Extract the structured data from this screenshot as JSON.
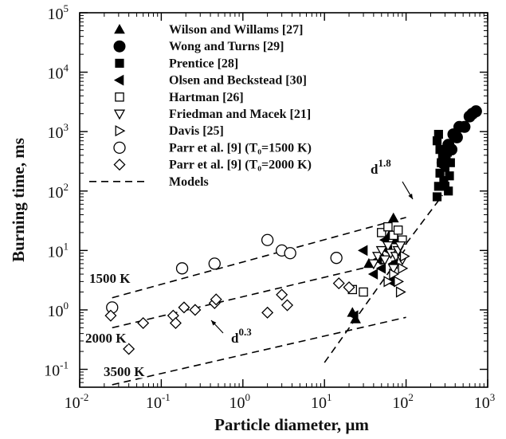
{
  "chart_data": {
    "type": "scatter",
    "title": "",
    "xlabel": "Particle diameter, µm",
    "ylabel": "Burning time, ms",
    "xscale": "log",
    "yscale": "log",
    "xlim": [
      0.01,
      1000
    ],
    "ylim": [
      0.05,
      100000
    ],
    "x_ticks": [
      {
        "value": 0.01,
        "mant": "10",
        "exp": "-2"
      },
      {
        "value": 0.1,
        "mant": "10",
        "exp": "-1"
      },
      {
        "value": 1,
        "mant": "10",
        "exp": "0"
      },
      {
        "value": 10,
        "mant": "10",
        "exp": "1"
      },
      {
        "value": 100,
        "mant": "10",
        "exp": "2"
      },
      {
        "value": 1000,
        "mant": "10",
        "exp": "3"
      }
    ],
    "y_ticks": [
      {
        "value": 0.1,
        "mant": "10",
        "exp": "-1"
      },
      {
        "value": 1,
        "mant": "10",
        "exp": "0"
      },
      {
        "value": 10,
        "mant": "10",
        "exp": "1"
      },
      {
        "value": 100,
        "mant": "10",
        "exp": "2"
      },
      {
        "value": 1000,
        "mant": "10",
        "exp": "3"
      },
      {
        "value": 10000,
        "mant": "10",
        "exp": "4"
      },
      {
        "value": 100000,
        "mant": "10",
        "exp": "5"
      }
    ],
    "grid": false,
    "legend_position": "top-left",
    "series": [
      {
        "name": "Wilson and Willams [27]",
        "marker": "triangle-up",
        "filled": true,
        "points": [
          [
            22,
            0.9
          ],
          [
            24,
            0.7
          ],
          [
            35,
            6
          ],
          [
            50,
            8
          ],
          [
            65,
            20
          ],
          [
            70,
            35
          ],
          [
            75,
            15
          ]
        ]
      },
      {
        "name": "Wong and Turns [29]",
        "marker": "circle",
        "filled": true,
        "points": [
          [
            280,
            300
          ],
          [
            300,
            450
          ],
          [
            330,
            600
          ],
          [
            360,
            500
          ],
          [
            420,
            800
          ],
          [
            450,
            1200
          ],
          [
            520,
            1200
          ],
          [
            600,
            1800
          ],
          [
            650,
            2000
          ],
          [
            720,
            2200
          ],
          [
            380,
            900
          ]
        ]
      },
      {
        "name": "Prentice [28]",
        "marker": "square",
        "filled": true,
        "points": [
          [
            240,
            80
          ],
          [
            250,
            120
          ],
          [
            260,
            200
          ],
          [
            270,
            300
          ],
          [
            280,
            400
          ],
          [
            290,
            150
          ],
          [
            300,
            250
          ],
          [
            310,
            350
          ],
          [
            320,
            450
          ],
          [
            330,
            100
          ],
          [
            340,
            180
          ],
          [
            260,
            500
          ],
          [
            240,
            700
          ],
          [
            250,
            900
          ],
          [
            350,
            300
          ],
          [
            300,
            120
          ]
        ]
      },
      {
        "name": "Olsen and Beckstead [30]",
        "marker": "triangle-left",
        "filled": true,
        "points": [
          [
            23,
            0.8
          ],
          [
            30,
            10
          ],
          [
            40,
            4
          ],
          [
            45,
            7
          ],
          [
            50,
            5
          ],
          [
            55,
            15
          ],
          [
            60,
            10
          ],
          [
            65,
            3
          ],
          [
            70,
            6
          ]
        ]
      },
      {
        "name": "Hartman [26]",
        "marker": "square",
        "filled": false,
        "points": [
          [
            22,
            2.2
          ],
          [
            30,
            2
          ],
          [
            50,
            20
          ],
          [
            60,
            25
          ],
          [
            70,
            18
          ],
          [
            80,
            22
          ],
          [
            90,
            15
          ]
        ]
      },
      {
        "name": "Friedman and Macek [21]",
        "marker": "triangle-down",
        "filled": false,
        "points": [
          [
            40,
            6
          ],
          [
            45,
            8
          ],
          [
            50,
            10
          ],
          [
            55,
            7
          ],
          [
            60,
            12
          ],
          [
            65,
            9
          ],
          [
            70,
            5
          ],
          [
            75,
            8
          ],
          [
            80,
            10
          ],
          [
            85,
            12
          ],
          [
            90,
            7
          ]
        ]
      },
      {
        "name": "Davis [25]",
        "marker": "triangle-right",
        "filled": false,
        "points": [
          [
            60,
            3
          ],
          [
            70,
            4
          ],
          [
            80,
            3
          ],
          [
            85,
            2
          ],
          [
            90,
            5
          ],
          [
            95,
            8
          ]
        ]
      },
      {
        "name": "Parr et al. [9] (T₀=1500 K)",
        "marker": "circle",
        "filled": false,
        "points": [
          [
            0.025,
            1.1
          ],
          [
            0.18,
            5
          ],
          [
            0.45,
            6
          ],
          [
            2,
            15
          ],
          [
            3,
            10
          ],
          [
            3.8,
            9
          ],
          [
            14,
            7.5
          ]
        ]
      },
      {
        "name": "Parr et al. [9] (T₀=2000 K)",
        "marker": "diamond",
        "filled": false,
        "points": [
          [
            0.024,
            0.8
          ],
          [
            0.04,
            0.22
          ],
          [
            0.06,
            0.6
          ],
          [
            0.14,
            0.8
          ],
          [
            0.15,
            0.6
          ],
          [
            0.19,
            1.1
          ],
          [
            0.26,
            1
          ],
          [
            0.45,
            1.3
          ],
          [
            0.47,
            1.5
          ],
          [
            2,
            0.9
          ],
          [
            3,
            1.8
          ],
          [
            3.5,
            1.2
          ],
          [
            15,
            2.8
          ],
          [
            20,
            2.4
          ]
        ]
      }
    ],
    "model_lines": [
      {
        "label": "1500 K",
        "from": [
          0.025,
          1.6
        ],
        "to": [
          100,
          36
        ]
      },
      {
        "label": "2000 K",
        "from": [
          0.025,
          0.5
        ],
        "to": [
          100,
          7.5
        ]
      },
      {
        "label": "3500 K",
        "from": [
          0.025,
          0.055
        ],
        "to": [
          100,
          0.75
        ]
      },
      {
        "label": "",
        "from": [
          10,
          0.13
        ],
        "to": [
          100,
          11
        ]
      },
      {
        "label": "",
        "from": [
          100,
          13
        ],
        "to": [
          280,
          85
        ]
      }
    ],
    "legend_models_label": "Models",
    "annotations": [
      {
        "text_base": "d",
        "text_exp": "1.8",
        "at": [
          170,
          230
        ],
        "arrow_to": [
          140,
          75
        ]
      },
      {
        "text_base": "d",
        "text_exp": "0.3",
        "at": [
          1.05,
          0.33
        ],
        "arrow_to": [
          0.6,
          0.45
        ]
      }
    ]
  }
}
